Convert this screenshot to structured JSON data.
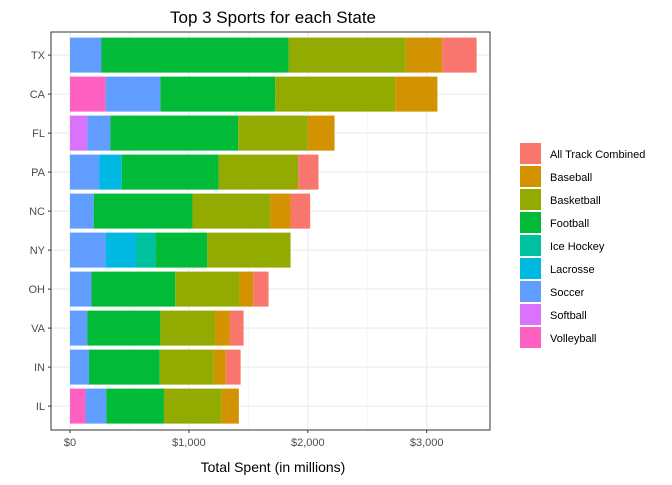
{
  "chart_data": {
    "type": "bar",
    "orientation": "horizontal",
    "stacked": true,
    "title": "Top 3 Sports for each State",
    "xlabel": "Total Spent (in millions)",
    "ylabel": "",
    "xlim": [
      0,
      3500
    ],
    "x_ticks": [
      0,
      1000,
      2000,
      3000
    ],
    "x_tick_labels": [
      "$0",
      "$1,000",
      "$2,000",
      "$3,000"
    ],
    "categories": [
      "TX",
      "CA",
      "FL",
      "PA",
      "NC",
      "NY",
      "OH",
      "VA",
      "IN",
      "IL"
    ],
    "grid": true,
    "legend_position": "right",
    "series": [
      {
        "name": "Volleyball",
        "color": "#FF61C3",
        "values": [
          0,
          300,
          0,
          0,
          0,
          0,
          0,
          0,
          0,
          130
        ]
      },
      {
        "name": "Softball",
        "color": "#DB72FB",
        "values": [
          0,
          0,
          145,
          0,
          0,
          0,
          0,
          0,
          0,
          0
        ]
      },
      {
        "name": "Soccer",
        "color": "#619CFF",
        "values": [
          265,
          460,
          195,
          245,
          200,
          300,
          180,
          145,
          160,
          175
        ]
      },
      {
        "name": "Lacrosse",
        "color": "#00B9E3",
        "values": [
          0,
          0,
          0,
          190,
          0,
          255,
          0,
          0,
          0,
          0
        ]
      },
      {
        "name": "Ice Hockey",
        "color": "#00C19F",
        "values": [
          0,
          0,
          0,
          0,
          0,
          165,
          0,
          0,
          0,
          0
        ]
      },
      {
        "name": "Football",
        "color": "#00BA38",
        "values": [
          1575,
          965,
          1075,
          815,
          830,
          435,
          705,
          615,
          595,
          485
        ]
      },
      {
        "name": "Basketball",
        "color": "#93AA00",
        "values": [
          985,
          1010,
          585,
          670,
          655,
          700,
          540,
          460,
          455,
          485
        ]
      },
      {
        "name": "Baseball",
        "color": "#D39200",
        "values": [
          305,
          355,
          225,
          0,
          170,
          0,
          115,
          125,
          100,
          145
        ]
      },
      {
        "name": "All Track Combined",
        "color": "#F8766D",
        "values": [
          290,
          0,
          0,
          170,
          165,
          0,
          130,
          115,
          125,
          0
        ]
      }
    ],
    "legend_order": [
      "All Track Combined",
      "Baseball",
      "Basketball",
      "Football",
      "Ice Hockey",
      "Lacrosse",
      "Soccer",
      "Softball",
      "Volleyball"
    ]
  }
}
